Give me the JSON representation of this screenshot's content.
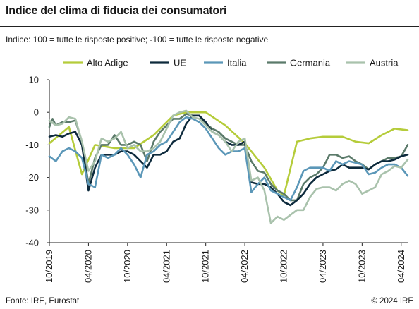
{
  "header": {
    "title": "Indice del clima di fiducia dei consumatori",
    "subtitle": "Indice: 100 = tutte le risposte positive; -100 =  tutte le risposte negative"
  },
  "footer": {
    "source": "Fonte: IRE, Eurostat",
    "copyright": "© 2024 IRE"
  },
  "chart_data": {
    "type": "line",
    "title": "Indice del clima di fiducia dei consumatori",
    "subtitle": "Indice: 100 = tutte le risposte positive; -100 =  tutte le risposte negative",
    "xlabel": "",
    "ylabel": "",
    "ylim": [
      -40,
      10
    ],
    "y_ticks": [
      10,
      0,
      -10,
      -20,
      -30,
      -40
    ],
    "x_range": [
      0,
      55
    ],
    "x_ticks": [
      {
        "label": "10/2019",
        "x": 0
      },
      {
        "label": "04/2020",
        "x": 6
      },
      {
        "label": "10/2020",
        "x": 12
      },
      {
        "label": "04/2021",
        "x": 18
      },
      {
        "label": "10/2021",
        "x": 24
      },
      {
        "label": "04/2022",
        "x": 30
      },
      {
        "label": "10/2022",
        "x": 36
      },
      {
        "label": "04/2023",
        "x": 42
      },
      {
        "label": "10/2023",
        "x": 48
      },
      {
        "label": "04/2024",
        "x": 54
      }
    ],
    "grid": false,
    "legend_position": "top",
    "series": [
      {
        "name": "Alto Adige",
        "color": "#b5cc3a",
        "points": [
          [
            0,
            -9.5
          ],
          [
            3,
            -4.5
          ],
          [
            5,
            -19
          ],
          [
            7,
            -10
          ],
          [
            10,
            -11
          ],
          [
            13,
            -11
          ],
          [
            16,
            -7
          ],
          [
            19,
            -1
          ],
          [
            21,
            0
          ],
          [
            24,
            0
          ],
          [
            27,
            -4
          ],
          [
            30,
            -9.5
          ],
          [
            33,
            -17
          ],
          [
            35,
            -24
          ],
          [
            36,
            -25.5
          ],
          [
            38,
            -9
          ],
          [
            40,
            -8
          ],
          [
            42,
            -7.5
          ],
          [
            45,
            -7.5
          ],
          [
            47,
            -9
          ],
          [
            49,
            -9.5
          ],
          [
            51,
            -7
          ],
          [
            53,
            -5
          ],
          [
            55,
            -5.5
          ]
        ]
      },
      {
        "name": "Germania",
        "color": "#5b7a6a",
        "points": [
          [
            0,
            -4.5
          ],
          [
            0.5,
            -2
          ],
          [
            1,
            -4
          ],
          [
            2,
            -3
          ],
          [
            3,
            -3
          ],
          [
            4,
            -2.5
          ],
          [
            5,
            -9
          ],
          [
            6,
            -22
          ],
          [
            7,
            -14
          ],
          [
            8,
            -10
          ],
          [
            9,
            -10
          ],
          [
            10,
            -7
          ],
          [
            11,
            -10
          ],
          [
            12,
            -10
          ],
          [
            13,
            -9
          ],
          [
            14,
            -10
          ],
          [
            15,
            -15
          ],
          [
            16,
            -9
          ],
          [
            17,
            -6
          ],
          [
            18,
            -4
          ],
          [
            19,
            -2
          ],
          [
            20,
            -2
          ],
          [
            21,
            -0.5
          ],
          [
            22,
            -1
          ],
          [
            23,
            -1
          ],
          [
            24,
            -3.5
          ],
          [
            25,
            -5
          ],
          [
            26,
            -6
          ],
          [
            27,
            -8
          ],
          [
            28,
            -9
          ],
          [
            29,
            -10
          ],
          [
            30,
            -10
          ],
          [
            31,
            -15
          ],
          [
            32,
            -18
          ],
          [
            33,
            -18.5
          ],
          [
            34,
            -22
          ],
          [
            35,
            -24
          ],
          [
            36,
            -25
          ],
          [
            37,
            -27
          ],
          [
            38,
            -27
          ],
          [
            39,
            -22
          ],
          [
            40,
            -20
          ],
          [
            41,
            -19
          ],
          [
            42,
            -17
          ],
          [
            43,
            -13
          ],
          [
            44,
            -13
          ],
          [
            45,
            -14
          ],
          [
            46,
            -13.5
          ],
          [
            47,
            -15
          ],
          [
            48,
            -16
          ],
          [
            49,
            -17.5
          ],
          [
            50,
            -16
          ],
          [
            51,
            -15
          ],
          [
            52,
            -14
          ],
          [
            53,
            -14
          ],
          [
            54,
            -13.5
          ],
          [
            55,
            -10
          ]
        ]
      },
      {
        "name": "UE",
        "color": "#0d2a3c",
        "points": [
          [
            0,
            -7.5
          ],
          [
            1,
            -7
          ],
          [
            2,
            -7.5
          ],
          [
            3,
            -6.5
          ],
          [
            4,
            -6
          ],
          [
            5,
            -10
          ],
          [
            6,
            -24
          ],
          [
            7,
            -17
          ],
          [
            8,
            -13
          ],
          [
            9,
            -13
          ],
          [
            10,
            -13
          ],
          [
            11,
            -12
          ],
          [
            12,
            -12
          ],
          [
            13,
            -13
          ],
          [
            14,
            -15
          ],
          [
            15,
            -17
          ],
          [
            16,
            -13
          ],
          [
            17,
            -13
          ],
          [
            18,
            -12
          ],
          [
            19,
            -9
          ],
          [
            20,
            -8
          ],
          [
            21,
            -3.5
          ],
          [
            22,
            -1
          ],
          [
            23,
            -1
          ],
          [
            24,
            -3
          ],
          [
            25,
            -6
          ],
          [
            26,
            -7
          ],
          [
            27,
            -9
          ],
          [
            28,
            -10
          ],
          [
            29,
            -10
          ],
          [
            30,
            -9
          ],
          [
            31,
            -21.5
          ],
          [
            32,
            -22
          ],
          [
            33,
            -22
          ],
          [
            34,
            -23
          ],
          [
            35,
            -25
          ],
          [
            36,
            -27.5
          ],
          [
            37,
            -28.5
          ],
          [
            38,
            -27
          ],
          [
            39,
            -25
          ],
          [
            40,
            -22
          ],
          [
            41,
            -20
          ],
          [
            42,
            -19
          ],
          [
            43,
            -18
          ],
          [
            44,
            -17.5
          ],
          [
            45,
            -16
          ],
          [
            46,
            -17
          ],
          [
            47,
            -17
          ],
          [
            48,
            -17
          ],
          [
            49,
            -17.5
          ],
          [
            50,
            -16
          ],
          [
            51,
            -15
          ],
          [
            52,
            -15
          ],
          [
            53,
            -14.5
          ],
          [
            54,
            -13.5
          ],
          [
            55,
            -13
          ]
        ]
      },
      {
        "name": "Italia",
        "color": "#5b97b8",
        "points": [
          [
            0,
            -13.5
          ],
          [
            1,
            -15
          ],
          [
            2,
            -12
          ],
          [
            3,
            -11
          ],
          [
            4,
            -12
          ],
          [
            5,
            -14
          ],
          [
            6,
            -22
          ],
          [
            7,
            -23
          ],
          [
            8,
            -13
          ],
          [
            9,
            -14
          ],
          [
            10,
            -13
          ],
          [
            11,
            -11
          ],
          [
            12,
            -13
          ],
          [
            13,
            -16
          ],
          [
            14,
            -20
          ],
          [
            15,
            -13
          ],
          [
            16,
            -12
          ],
          [
            17,
            -10
          ],
          [
            18,
            -9
          ],
          [
            19,
            -6
          ],
          [
            20,
            -3
          ],
          [
            21,
            -1.5
          ],
          [
            22,
            -2
          ],
          [
            23,
            -3
          ],
          [
            24,
            -5
          ],
          [
            25,
            -8
          ],
          [
            26,
            -11
          ],
          [
            27,
            -13
          ],
          [
            28,
            -12
          ],
          [
            29,
            -12
          ],
          [
            30,
            -11
          ],
          [
            31,
            -24.5
          ],
          [
            32,
            -22
          ],
          [
            33,
            -20
          ],
          [
            34,
            -24
          ],
          [
            35,
            -25
          ],
          [
            36,
            -26
          ],
          [
            37,
            -27
          ],
          [
            38,
            -23
          ],
          [
            39,
            -18
          ],
          [
            40,
            -17
          ],
          [
            41,
            -17
          ],
          [
            42,
            -17
          ],
          [
            43,
            -18
          ],
          [
            44,
            -15
          ],
          [
            45,
            -16
          ],
          [
            46,
            -15
          ],
          [
            47,
            -15.5
          ],
          [
            48,
            -16
          ],
          [
            49,
            -19
          ],
          [
            50,
            -18.5
          ],
          [
            51,
            -17
          ],
          [
            52,
            -16
          ],
          [
            53,
            -16
          ],
          [
            54,
            -17
          ],
          [
            55,
            -19.5
          ]
        ]
      },
      {
        "name": "Austria",
        "color": "#a9c2ac",
        "points": [
          [
            0,
            -2.5
          ],
          [
            1,
            -4
          ],
          [
            2,
            -3.5
          ],
          [
            3,
            -1.5
          ],
          [
            4,
            -2
          ],
          [
            5,
            -9
          ],
          [
            6,
            -18
          ],
          [
            7,
            -15
          ],
          [
            8,
            -8
          ],
          [
            9,
            -9
          ],
          [
            10,
            -8
          ],
          [
            11,
            -6
          ],
          [
            12,
            -11
          ],
          [
            13,
            -10
          ],
          [
            14,
            -12
          ],
          [
            15,
            -12
          ],
          [
            16,
            -11
          ],
          [
            17,
            -9
          ],
          [
            18,
            -5
          ],
          [
            19,
            -1
          ],
          [
            20,
            0
          ],
          [
            21,
            0.5
          ],
          [
            22,
            -1.5
          ],
          [
            23,
            -2
          ],
          [
            24,
            -4
          ],
          [
            25,
            -6
          ],
          [
            26,
            -7
          ],
          [
            27,
            -9
          ],
          [
            28,
            -12
          ],
          [
            29,
            -9
          ],
          [
            30,
            -8
          ],
          [
            31,
            -21
          ],
          [
            32,
            -20
          ],
          [
            33,
            -24
          ],
          [
            34,
            -34
          ],
          [
            35,
            -32
          ],
          [
            36,
            -33
          ],
          [
            37,
            -31.5
          ],
          [
            38,
            -30
          ],
          [
            39,
            -30
          ],
          [
            40,
            -26
          ],
          [
            41,
            -23.5
          ],
          [
            42,
            -23
          ],
          [
            43,
            -23
          ],
          [
            44,
            -24
          ],
          [
            45,
            -22
          ],
          [
            46,
            -21
          ],
          [
            47,
            -22
          ],
          [
            48,
            -25
          ],
          [
            49,
            -24
          ],
          [
            50,
            -23
          ],
          [
            51,
            -19
          ],
          [
            52,
            -18
          ],
          [
            53,
            -16.5
          ],
          [
            54,
            -17
          ],
          [
            55,
            -14.5
          ]
        ]
      }
    ],
    "legend": [
      {
        "name": "Alto Adige",
        "color": "#b5cc3a"
      },
      {
        "name": "UE",
        "color": "#0d2a3c"
      },
      {
        "name": "Italia",
        "color": "#5b97b8"
      },
      {
        "name": "Germania",
        "color": "#5b7a6a"
      },
      {
        "name": "Austria",
        "color": "#a9c2ac"
      }
    ]
  }
}
